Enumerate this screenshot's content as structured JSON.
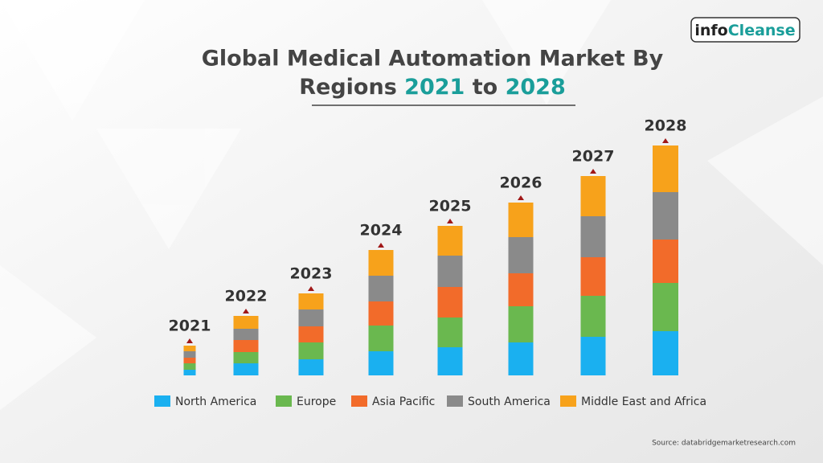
{
  "logo": {
    "left": "info",
    "right": "Cleanse"
  },
  "source": "Source: databridgemarketresearch.com",
  "chart_data": {
    "type": "bar",
    "stacked": true,
    "title": [
      "Global Medical Automation Market By",
      "Regions",
      "2021",
      "to",
      "2028"
    ],
    "categories": [
      "2021",
      "2022",
      "2023",
      "2024",
      "2025",
      "2026",
      "2027",
      "2028"
    ],
    "series": [
      {
        "name": "North America",
        "color": "#1ab0f0",
        "values": [
          7,
          15,
          20,
          30,
          35,
          41,
          48,
          55
        ]
      },
      {
        "name": "Europe",
        "color": "#6ab84f",
        "values": [
          8,
          14,
          21,
          32,
          37,
          45,
          51,
          60
        ]
      },
      {
        "name": "Asia Pacific",
        "color": "#f26b2a",
        "values": [
          7,
          15,
          20,
          30,
          38,
          41,
          48,
          54
        ]
      },
      {
        "name": "South America",
        "color": "#8a8a8a",
        "values": [
          8,
          14,
          21,
          32,
          39,
          45,
          51,
          59
        ]
      },
      {
        "name": "Middle East and Africa",
        "color": "#f7a21b",
        "values": [
          7,
          16,
          20,
          32,
          37,
          43,
          50,
          58
        ]
      }
    ]
  }
}
